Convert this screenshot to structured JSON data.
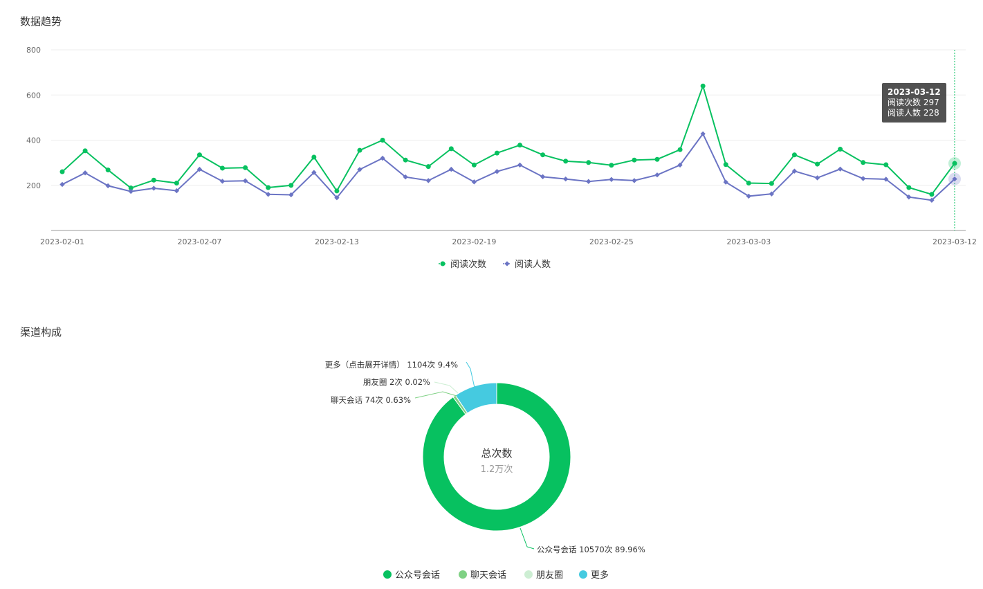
{
  "sections": {
    "trend_title": "数据趋势",
    "channel_title": "渠道构成"
  },
  "tooltip": {
    "date": "2023-03-12",
    "line1": "阅读次数 297",
    "line2": "阅读人数 228"
  },
  "colors": {
    "series1": "#07c160",
    "series2": "#6b74c4",
    "donut": [
      "#07c160",
      "#7fd184",
      "#cdeed3",
      "#45cae0"
    ]
  },
  "chart_data": [
    {
      "type": "line",
      "x_tick_labels": [
        "2023-02-01",
        "2023-02-07",
        "2023-02-13",
        "2023-02-19",
        "2023-02-25",
        "2023-03-03",
        "2023-03-12"
      ],
      "ylim": [
        0,
        800
      ],
      "y_ticks": [
        200,
        400,
        600,
        800
      ],
      "grid": true,
      "legend_position": "bottom",
      "x": [
        "2023-02-01",
        "2023-02-02",
        "2023-02-03",
        "2023-02-04",
        "2023-02-05",
        "2023-02-06",
        "2023-02-07",
        "2023-02-08",
        "2023-02-09",
        "2023-02-10",
        "2023-02-11",
        "2023-02-12",
        "2023-02-13",
        "2023-02-14",
        "2023-02-15",
        "2023-02-16",
        "2023-02-17",
        "2023-02-18",
        "2023-02-19",
        "2023-02-20",
        "2023-02-21",
        "2023-02-22",
        "2023-02-23",
        "2023-02-24",
        "2023-02-25",
        "2023-02-26",
        "2023-02-27",
        "2023-02-28",
        "2023-03-01",
        "2023-03-02",
        "2023-03-03",
        "2023-03-04",
        "2023-03-05",
        "2023-03-06",
        "2023-03-07",
        "2023-03-08",
        "2023-03-09",
        "2023-03-10",
        "2023-03-11",
        "2023-03-12"
      ],
      "series": [
        {
          "name": "阅读次数",
          "values": [
            260,
            353,
            268,
            188,
            223,
            210,
            335,
            276,
            278,
            190,
            200,
            325,
            175,
            355,
            400,
            312,
            283,
            362,
            290,
            343,
            378,
            335,
            307,
            301,
            289,
            312,
            315,
            358,
            640,
            292,
            210,
            208,
            335,
            294,
            360,
            301,
            291,
            190,
            160,
            297
          ]
        },
        {
          "name": "阅读人数",
          "values": [
            204,
            255,
            198,
            173,
            187,
            176,
            271,
            218,
            220,
            160,
            158,
            257,
            145,
            270,
            320,
            237,
            221,
            271,
            215,
            261,
            290,
            238,
            228,
            217,
            226,
            221,
            246,
            290,
            428,
            214,
            152,
            162,
            263,
            233,
            272,
            230,
            227,
            148,
            134,
            228
          ]
        }
      ]
    },
    {
      "type": "pie",
      "center_title": "总次数",
      "center_value": "1.2万次",
      "legend_position": "bottom",
      "slices": [
        {
          "name": "公众号会话",
          "value": 10570,
          "percent": 89.96,
          "label": "公众号会话 10570次 89.96%"
        },
        {
          "name": "聊天会话",
          "value": 74,
          "percent": 0.63,
          "label": "聊天会话 74次 0.63%"
        },
        {
          "name": "朋友圈",
          "value": 2,
          "percent": 0.02,
          "label": "朋友圈 2次 0.02%"
        },
        {
          "name": "更多",
          "value": 1104,
          "percent": 9.4,
          "label": "更多（点击展开详情） 1104次 9.4%"
        }
      ]
    }
  ]
}
